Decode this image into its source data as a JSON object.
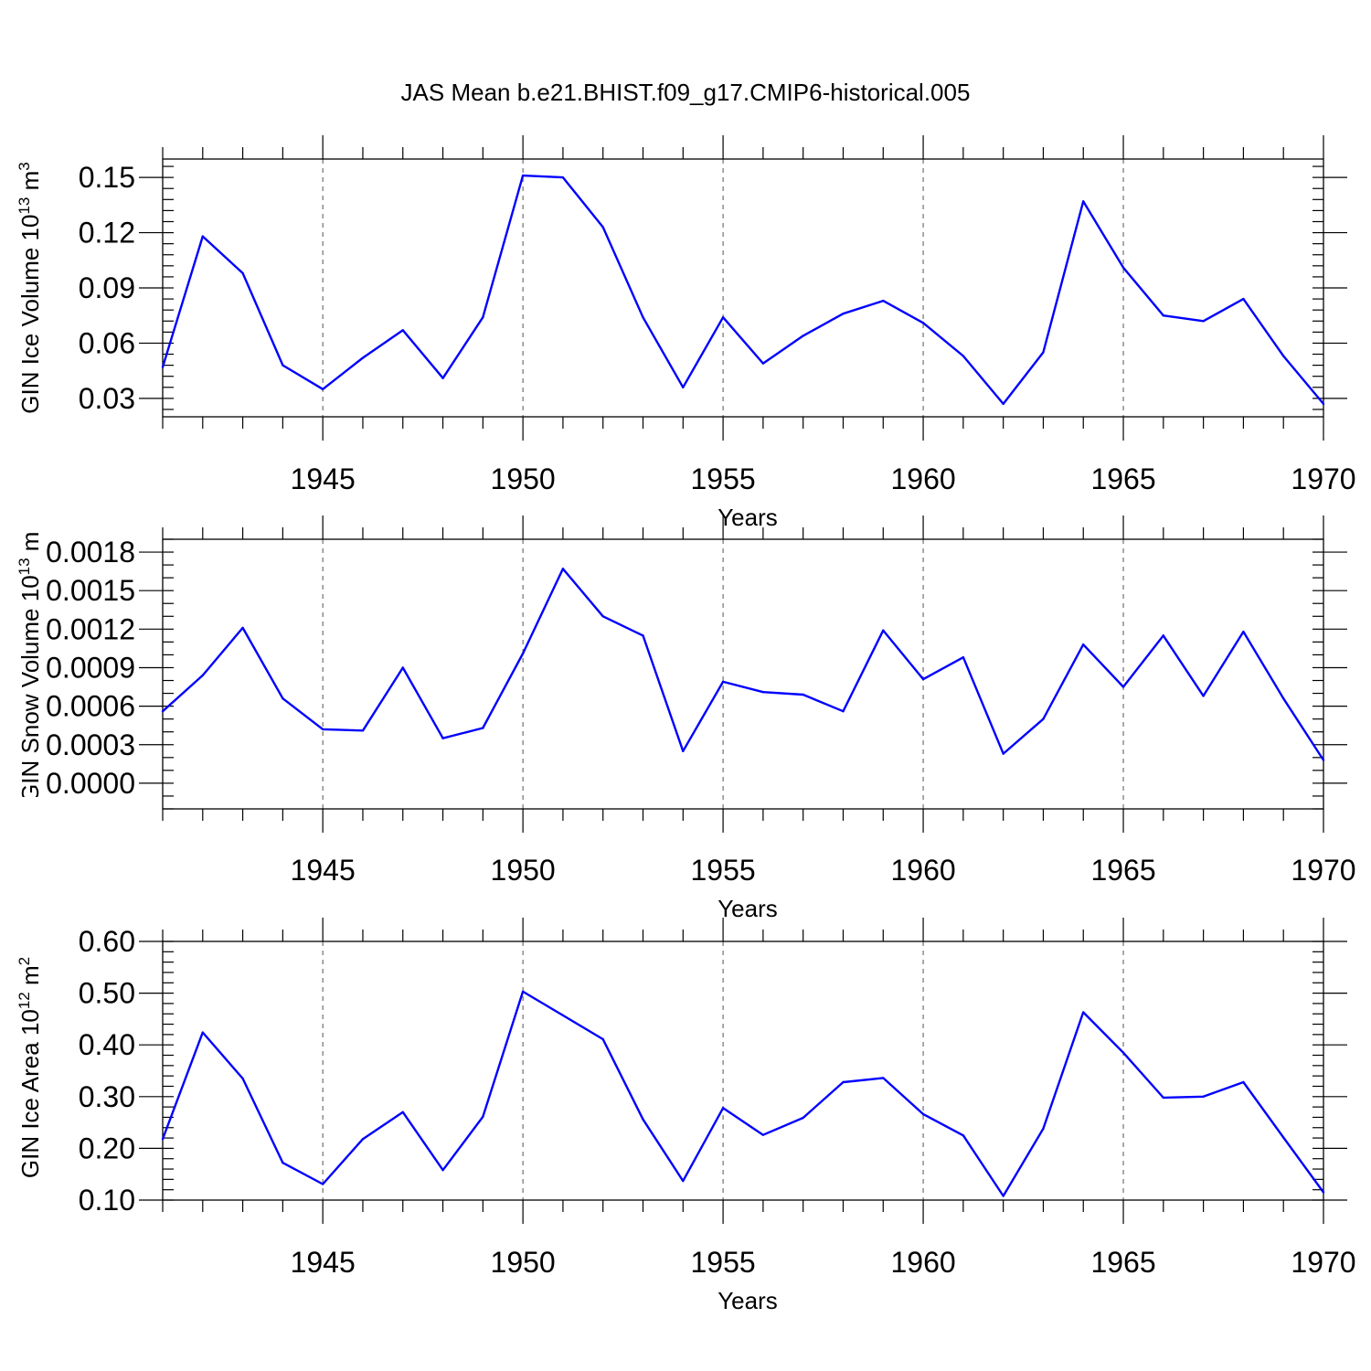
{
  "figure": {
    "title": "JAS Mean b.e21.BHIST.f09_g17.CMIP6-historical.005"
  },
  "chart_data": [
    {
      "type": "line",
      "title": "",
      "xlabel": "Years",
      "ylabel": "GIN Ice Volume 10",
      "ylabel_sup": "13",
      "ylabel_unit": " m",
      "ylabel_unit_sup": "3",
      "xlim": [
        1941,
        1970
      ],
      "ylim": [
        0.02,
        0.16
      ],
      "x_ticks": [
        1945,
        1950,
        1955,
        1960,
        1965,
        1970
      ],
      "y_ticks": [
        0.03,
        0.06,
        0.09,
        0.12,
        0.15
      ],
      "y_tick_labels": [
        "0.03",
        "0.06",
        "0.09",
        "0.12",
        "0.15"
      ],
      "y_minor_step": 0.006,
      "grid": "vertical dashed at major x ticks",
      "color": "#0000ff",
      "x": [
        1941,
        1942,
        1943,
        1944,
        1945,
        1946,
        1947,
        1948,
        1949,
        1950,
        1951,
        1952,
        1953,
        1954,
        1955,
        1956,
        1957,
        1958,
        1959,
        1960,
        1961,
        1962,
        1963,
        1964,
        1965,
        1966,
        1967,
        1968,
        1969,
        1970
      ],
      "values": [
        0.047,
        0.118,
        0.098,
        0.048,
        0.035,
        0.052,
        0.067,
        0.041,
        0.074,
        0.151,
        0.15,
        0.123,
        0.074,
        0.036,
        0.074,
        0.049,
        0.064,
        0.076,
        0.083,
        0.071,
        0.053,
        0.027,
        0.055,
        0.137,
        0.101,
        0.075,
        0.072,
        0.084,
        0.053,
        0.027
      ]
    },
    {
      "type": "line",
      "title": "",
      "xlabel": "Years",
      "ylabel": "GIN Snow Volume 10",
      "ylabel_sup": "13",
      "ylabel_unit": " m",
      "ylabel_unit_sup": "3",
      "xlim": [
        1941,
        1970
      ],
      "ylim": [
        -0.0002,
        0.0019
      ],
      "x_ticks": [
        1945,
        1950,
        1955,
        1960,
        1965,
        1970
      ],
      "y_ticks": [
        0.0,
        0.0003,
        0.0006,
        0.0009,
        0.0012,
        0.0015,
        0.0018
      ],
      "y_tick_labels": [
        "0.0000",
        "0.0003",
        "0.0006",
        "0.0009",
        "0.0012",
        "0.0015",
        "0.0018"
      ],
      "y_minor_step": 0.0001,
      "grid": "vertical dashed at major x ticks",
      "color": "#0000ff",
      "x": [
        1941,
        1942,
        1943,
        1944,
        1945,
        1946,
        1947,
        1948,
        1949,
        1950,
        1951,
        1952,
        1953,
        1954,
        1955,
        1956,
        1957,
        1958,
        1959,
        1960,
        1961,
        1962,
        1963,
        1964,
        1965,
        1966,
        1967,
        1968,
        1969,
        1970
      ],
      "values": [
        0.00056,
        0.00084,
        0.00121,
        0.00066,
        0.00042,
        0.00041,
        0.0009,
        0.00035,
        0.00043,
        0.00101,
        0.00167,
        0.0013,
        0.00115,
        0.00025,
        0.00079,
        0.00071,
        0.00069,
        0.00056,
        0.00119,
        0.00081,
        0.00098,
        0.00023,
        0.0005,
        0.00108,
        0.00075,
        0.00115,
        0.00068,
        0.00118,
        0.00066,
        0.00018
      ]
    },
    {
      "type": "line",
      "title": "",
      "xlabel": "Years",
      "ylabel": "GIN Ice Area 10",
      "ylabel_sup": "12",
      "ylabel_unit": " m",
      "ylabel_unit_sup": "2",
      "xlim": [
        1941,
        1970
      ],
      "ylim": [
        0.1,
        0.6
      ],
      "x_ticks": [
        1945,
        1950,
        1955,
        1960,
        1965,
        1970
      ],
      "y_ticks": [
        0.1,
        0.2,
        0.3,
        0.4,
        0.5,
        0.6
      ],
      "y_tick_labels": [
        "0.10",
        "0.20",
        "0.30",
        "0.40",
        "0.50",
        "0.60"
      ],
      "y_minor_step": 0.02,
      "grid": "vertical dashed at major x ticks",
      "color": "#0000ff",
      "x": [
        1941,
        1942,
        1943,
        1944,
        1945,
        1946,
        1947,
        1948,
        1949,
        1950,
        1951,
        1952,
        1953,
        1954,
        1955,
        1956,
        1957,
        1958,
        1959,
        1960,
        1961,
        1962,
        1963,
        1964,
        1965,
        1966,
        1967,
        1968,
        1969,
        1970
      ],
      "values": [
        0.218,
        0.424,
        0.335,
        0.172,
        0.131,
        0.218,
        0.27,
        0.158,
        0.261,
        0.503,
        0.457,
        0.411,
        0.256,
        0.137,
        0.278,
        0.226,
        0.259,
        0.328,
        0.336,
        0.266,
        0.225,
        0.108,
        0.238,
        0.463,
        0.385,
        0.298,
        0.3,
        0.328,
        0.221,
        0.115
      ]
    }
  ]
}
